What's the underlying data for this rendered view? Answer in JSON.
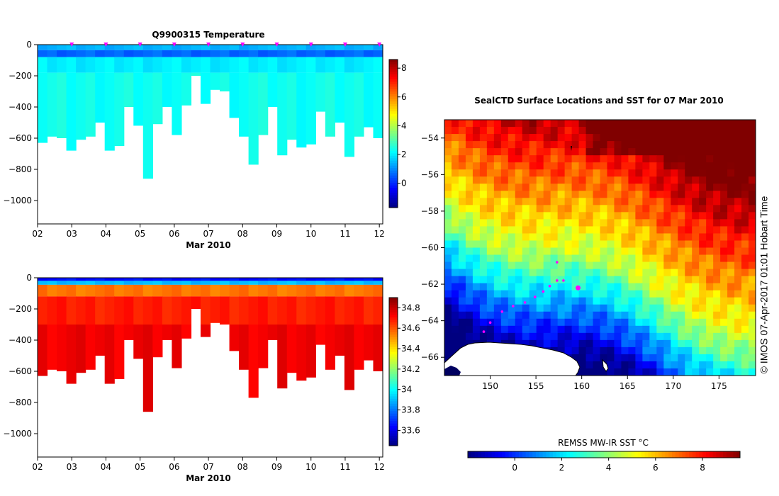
{
  "chart_data": [
    {
      "id": "temp",
      "type": "heatmap",
      "title": "Q9900315  Temperature",
      "xlabel": "Mar 2010",
      "ylabel": "",
      "x_range": [
        2,
        12.1
      ],
      "ylim": [
        -1150,
        0
      ],
      "x_tick_labels": [
        "02",
        "03",
        "04",
        "05",
        "06",
        "07",
        "08",
        "09",
        "10",
        "11",
        "12"
      ],
      "y_ticks": [
        0,
        -200,
        -400,
        -600,
        -800,
        -1000
      ],
      "colorbar": {
        "min": -1.7,
        "max": 8.6,
        "ticks": [
          0,
          2,
          4,
          6,
          8
        ]
      },
      "profile_max_depths": [
        630,
        590,
        600,
        680,
        610,
        590,
        500,
        680,
        650,
        400,
        520,
        860,
        510,
        400,
        580,
        390,
        200,
        380,
        290,
        300,
        470,
        590,
        770,
        580,
        400,
        710,
        610,
        660,
        640,
        430,
        590,
        500,
        720,
        590,
        530,
        600
      ],
      "layers": [
        {
          "top": 0,
          "bottom": 35,
          "value": 1.4
        },
        {
          "top": 35,
          "bottom": 80,
          "value": 0.6
        },
        {
          "top": 80,
          "bottom": 180,
          "value": 2.0
        },
        {
          "top": 180,
          "bottom": 10000,
          "value": 2.3
        }
      ],
      "cruise_markers_day": [
        3,
        4,
        5,
        6,
        7,
        8,
        9,
        10,
        11,
        12
      ]
    },
    {
      "id": "sal",
      "type": "heatmap",
      "title": "",
      "xlabel": "Mar 2010",
      "ylabel": "",
      "x_range": [
        2,
        12.1
      ],
      "ylim": [
        -1150,
        0
      ],
      "x_tick_labels": [
        "02",
        "03",
        "04",
        "05",
        "06",
        "07",
        "08",
        "09",
        "10",
        "11",
        "12"
      ],
      "y_ticks": [
        0,
        -200,
        -400,
        -600,
        -800,
        -1000
      ],
      "colorbar": {
        "min": 33.45,
        "max": 34.9,
        "ticks": [
          33.6,
          33.8,
          34,
          34.2,
          34.4,
          34.6,
          34.8
        ],
        "tick_labels": [
          "33.6",
          "33.8",
          "34",
          "34.2",
          "34.4",
          "34.6",
          "34.8"
        ]
      },
      "profile_max_depths": [
        630,
        590,
        600,
        680,
        610,
        590,
        500,
        680,
        650,
        400,
        520,
        860,
        510,
        400,
        580,
        390,
        200,
        380,
        290,
        300,
        470,
        590,
        770,
        580,
        400,
        710,
        610,
        660,
        640,
        430,
        590,
        500,
        720,
        590,
        530,
        600
      ],
      "layers": [
        {
          "top": 0,
          "bottom": 20,
          "value": 33.65
        },
        {
          "top": 20,
          "bottom": 45,
          "value": 33.9
        },
        {
          "top": 45,
          "bottom": 120,
          "value": 34.55
        },
        {
          "top": 120,
          "bottom": 300,
          "value": 34.68
        },
        {
          "top": 300,
          "bottom": 10000,
          "value": 34.74
        }
      ]
    },
    {
      "id": "map",
      "type": "heatmap",
      "title": "SealCTD Surface Locations and SST for 07 Mar 2010",
      "xlabel": "",
      "ylabel": "",
      "xlim": [
        145,
        179
      ],
      "ylim": [
        -67,
        -53
      ],
      "x_ticks": [
        150,
        155,
        160,
        165,
        170,
        175
      ],
      "y_ticks": [
        -54,
        -56,
        -58,
        -60,
        -62,
        -64,
        -66
      ],
      "colorbar": {
        "label": "REMSS MW-IR SST °C",
        "min": -2,
        "max": 9.6,
        "ticks": [
          0,
          2,
          4,
          6,
          8
        ]
      },
      "seal_track": [
        {
          "lon": 149.3,
          "lat": -64.6
        },
        {
          "lon": 150.0,
          "lat": -64.1
        },
        {
          "lon": 151.3,
          "lat": -63.5
        },
        {
          "lon": 152.5,
          "lat": -63.2
        },
        {
          "lon": 153.8,
          "lat": -63.0
        },
        {
          "lon": 154.9,
          "lat": -62.7
        },
        {
          "lon": 155.8,
          "lat": -62.4
        },
        {
          "lon": 156.5,
          "lat": -62.1
        },
        {
          "lon": 157.3,
          "lat": -61.8
        },
        {
          "lon": 158.0,
          "lat": -61.8
        },
        {
          "lon": 157.3,
          "lat": -60.8
        },
        {
          "lon": 159.6,
          "lat": -62.2
        }
      ]
    }
  ],
  "side_text": "©  IMOS 07-Apr-2017 01:01 Hobart Time"
}
